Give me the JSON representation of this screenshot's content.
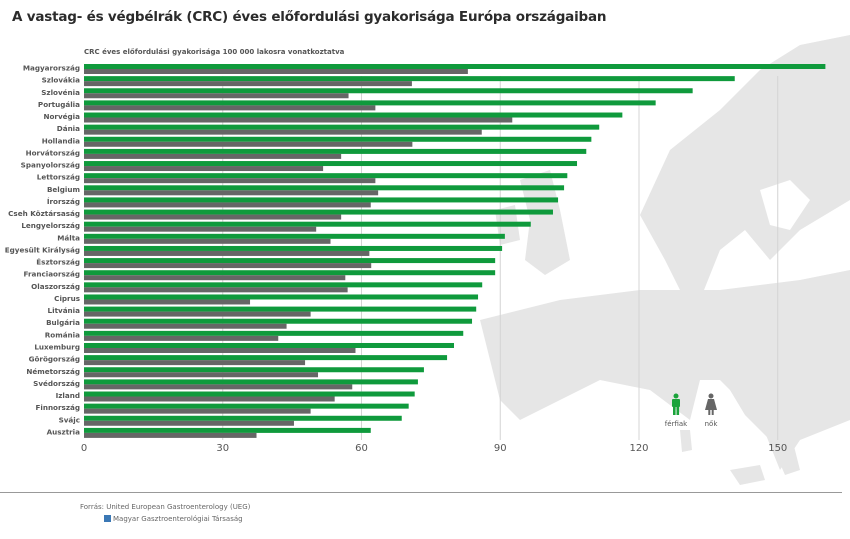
{
  "title": "A vastag- és végbélrák (CRC) éves előfordulási gyakorisága Európa országaiban",
  "footer": {
    "source": "Forrás: United European Gastroenterology (UEG)",
    "society": "Magyar Gasztroenterológiai Társaság"
  },
  "chart_data": {
    "type": "bar",
    "orientation": "horizontal",
    "subtitle": "CRC éves előfordulási gyakorisága 100 000 lakosra vonatkoztatva",
    "categories": [
      "Magyarország",
      "Szlovákia",
      "Szlovénia",
      "Portugália",
      "Norvégia",
      "Dánia",
      "Hollandia",
      "Horvátország",
      "Spanyolország",
      "Lettország",
      "Belgium",
      "Írország",
      "Cseh Köztársaság",
      "Lengyelország",
      "Málta",
      "Egyesült Királyság",
      "Észtország",
      "Franciaország",
      "Olaszország",
      "Ciprus",
      "Litvánia",
      "Bulgária",
      "Románia",
      "Luxemburg",
      "Görögország",
      "Németország",
      "Svédország",
      "Izland",
      "Finnország",
      "Svájc",
      "Ausztria"
    ],
    "series": [
      {
        "name": "férfiak",
        "color": "#0f9a3c",
        "values": [
          160.3,
          140.7,
          131.6,
          123.6,
          116.4,
          111.4,
          109.7,
          108.6,
          106.6,
          104.5,
          103.8,
          102.5,
          101.4,
          96.6,
          91.0,
          90.4,
          88.9,
          88.9,
          86.1,
          85.2,
          84.8,
          83.9,
          82.0,
          80.0,
          78.5,
          73.5,
          72.2,
          71.5,
          70.2,
          68.7,
          62.0
        ]
      },
      {
        "name": "nők",
        "color": "#666666",
        "values": [
          83.0,
          70.9,
          57.2,
          63.0,
          92.6,
          86.0,
          71.0,
          55.6,
          51.7,
          63.0,
          63.6,
          62.0,
          55.6,
          50.2,
          53.3,
          61.7,
          62.1,
          56.5,
          57.0,
          35.9,
          49.0,
          43.8,
          42.0,
          58.7,
          47.8,
          50.6,
          58.0,
          54.2,
          49.0,
          45.4,
          37.3
        ]
      }
    ],
    "xticks": [
      0,
      30,
      60,
      90,
      120,
      150
    ],
    "xlim": [
      0,
      165
    ],
    "grid": "vertical",
    "legend_placement": "bottom-right",
    "background": "map of Europe (light gray)"
  }
}
